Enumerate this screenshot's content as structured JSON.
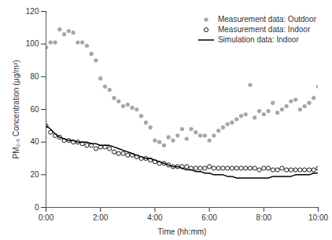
{
  "chart_data": {
    "type": "scatter",
    "x_label": "Time (hh:mm)",
    "y_label": "PM₂.₅ Concentration (μg/m³)",
    "x": [
      0,
      10,
      20,
      30,
      40,
      50,
      60,
      70,
      80,
      90,
      100,
      110,
      120,
      130,
      140,
      150,
      160,
      170,
      180,
      190,
      200,
      210,
      220,
      230,
      240,
      250,
      260,
      270,
      280,
      290,
      300,
      310,
      320,
      330,
      340,
      350,
      360,
      370,
      380,
      390,
      400,
      410,
      420,
      430,
      440,
      450,
      460,
      470,
      480,
      490,
      500,
      510,
      520,
      530,
      540,
      550,
      560,
      570,
      580,
      590,
      600
    ],
    "xlim": [
      0,
      600
    ],
    "xticks": [
      {
        "value": 0,
        "label": "0:00"
      },
      {
        "value": 120,
        "label": "2:00"
      },
      {
        "value": 240,
        "label": "4:00"
      },
      {
        "value": 360,
        "label": "6:00"
      },
      {
        "value": 480,
        "label": "8:00"
      },
      {
        "value": 600,
        "label": "10:00"
      }
    ],
    "ylim": [
      0,
      120
    ],
    "yticks": [
      0,
      20,
      40,
      60,
      80,
      100,
      120
    ],
    "grid": false,
    "legend": "upper right",
    "series": [
      {
        "name": "Measurement data: Outdoor",
        "type": "scatter",
        "marker": "circle",
        "color": "#a6a6a6",
        "values": [
          98,
          101,
          101,
          109,
          106,
          108,
          107,
          101,
          101,
          99,
          94,
          90,
          79,
          74,
          72,
          67,
          65,
          62,
          63,
          61,
          60,
          56,
          52,
          49,
          41,
          40,
          38,
          43,
          41,
          44,
          48,
          42,
          48,
          46,
          44,
          44,
          41,
          44,
          47,
          49,
          51,
          52,
          54,
          56,
          57,
          75,
          55,
          59,
          57,
          59,
          64,
          58,
          60,
          62,
          65,
          66,
          60,
          62,
          64,
          67,
          74
        ]
      },
      {
        "name": "Measurement data: Indoor",
        "type": "scatter",
        "marker": "open_circle",
        "color": "#000000",
        "values": [
          50,
          46,
          44,
          43,
          41,
          41,
          40,
          40,
          39,
          38,
          38,
          36,
          37,
          37,
          36,
          34,
          33,
          33,
          32,
          32,
          31,
          30,
          30,
          29,
          28,
          27,
          27,
          26,
          25,
          25,
          25,
          25,
          24,
          24,
          24,
          24,
          25,
          24,
          24,
          24,
          24,
          24,
          24,
          24,
          24,
          24,
          24,
          23,
          24,
          24,
          23,
          23,
          24,
          23,
          23,
          23,
          23,
          23,
          23,
          23,
          24
        ]
      },
      {
        "name": "Simulation data: Indoor",
        "type": "line",
        "line_style": "solid",
        "color": "#000000",
        "values": [
          50,
          48,
          45,
          43,
          42,
          41,
          41,
          40,
          40,
          40,
          39,
          39,
          38,
          38,
          38,
          37,
          36,
          35,
          34,
          33,
          32,
          31,
          30,
          30,
          29,
          28,
          27,
          26,
          25,
          25,
          24,
          23,
          23,
          22,
          22,
          21,
          21,
          20,
          20,
          20,
          19,
          19,
          18,
          18,
          18,
          18,
          18,
          18,
          18,
          18,
          19,
          19,
          19,
          19,
          19,
          20,
          20,
          20,
          20,
          21,
          21
        ]
      }
    ]
  }
}
